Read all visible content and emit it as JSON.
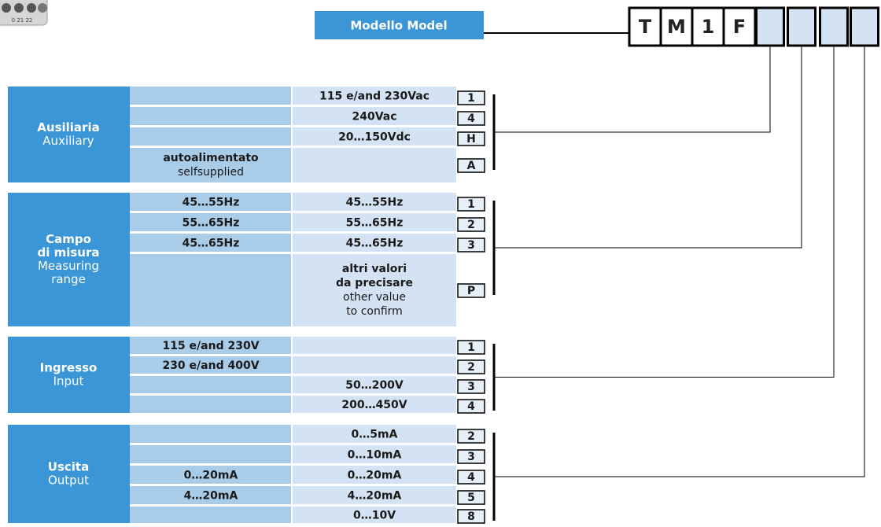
{
  "device_label": "0  21  22",
  "model_label": "Modello  Model",
  "code_fixed": [
    "T",
    "M",
    "1",
    "F"
  ],
  "sections": [
    {
      "title_it": [
        "Ausiliaria"
      ],
      "title_en": [
        "Auxiliary"
      ],
      "rows": [
        {
          "col2": "115 e/and 230Vac",
          "code": "1"
        },
        {
          "col2": "240Vac",
          "code": "4"
        },
        {
          "col2": "20…150Vdc",
          "code": "H"
        },
        {
          "col1": {
            "it": [
              "autoalimentato"
            ],
            "en": [
              "selfsupplied"
            ]
          },
          "code": "A"
        }
      ]
    },
    {
      "title_it": [
        "Campo",
        "di misura"
      ],
      "title_en": [
        "Measuring",
        "range"
      ],
      "rows": [
        {
          "col1": "45…55Hz",
          "col2": "45…55Hz",
          "code": "1"
        },
        {
          "col1": "55…65Hz",
          "col2": "55…65Hz",
          "code": "2"
        },
        {
          "col1": "45…65Hz",
          "col2": "45…65Hz",
          "code": "3"
        },
        {
          "col2": {
            "it": [
              "altri valori",
              "da precisare"
            ],
            "en": [
              "other value",
              "to confirm"
            ]
          },
          "code": "P"
        }
      ]
    },
    {
      "title_it": [
        "Ingresso"
      ],
      "title_en": [
        "Input"
      ],
      "rows": [
        {
          "col1": "115 e/and 230V",
          "code": "1"
        },
        {
          "col1": "230 e/and 400V",
          "code": "2"
        },
        {
          "col2": "50…200V",
          "code": "3"
        },
        {
          "col2": "200…450V",
          "code": "4"
        }
      ]
    },
    {
      "title_it": [
        "Uscita"
      ],
      "title_en": [
        "Output"
      ],
      "rows": [
        {
          "col2": "0…5mA",
          "code": "2"
        },
        {
          "col2": "0…10mA",
          "code": "3"
        },
        {
          "col1": "0…20mA",
          "col2": "0…20mA",
          "code": "4"
        },
        {
          "col1": "4…20mA",
          "col2": "4…20mA",
          "code": "5"
        },
        {
          "col2": "0…10V",
          "code": "8"
        }
      ]
    }
  ]
}
